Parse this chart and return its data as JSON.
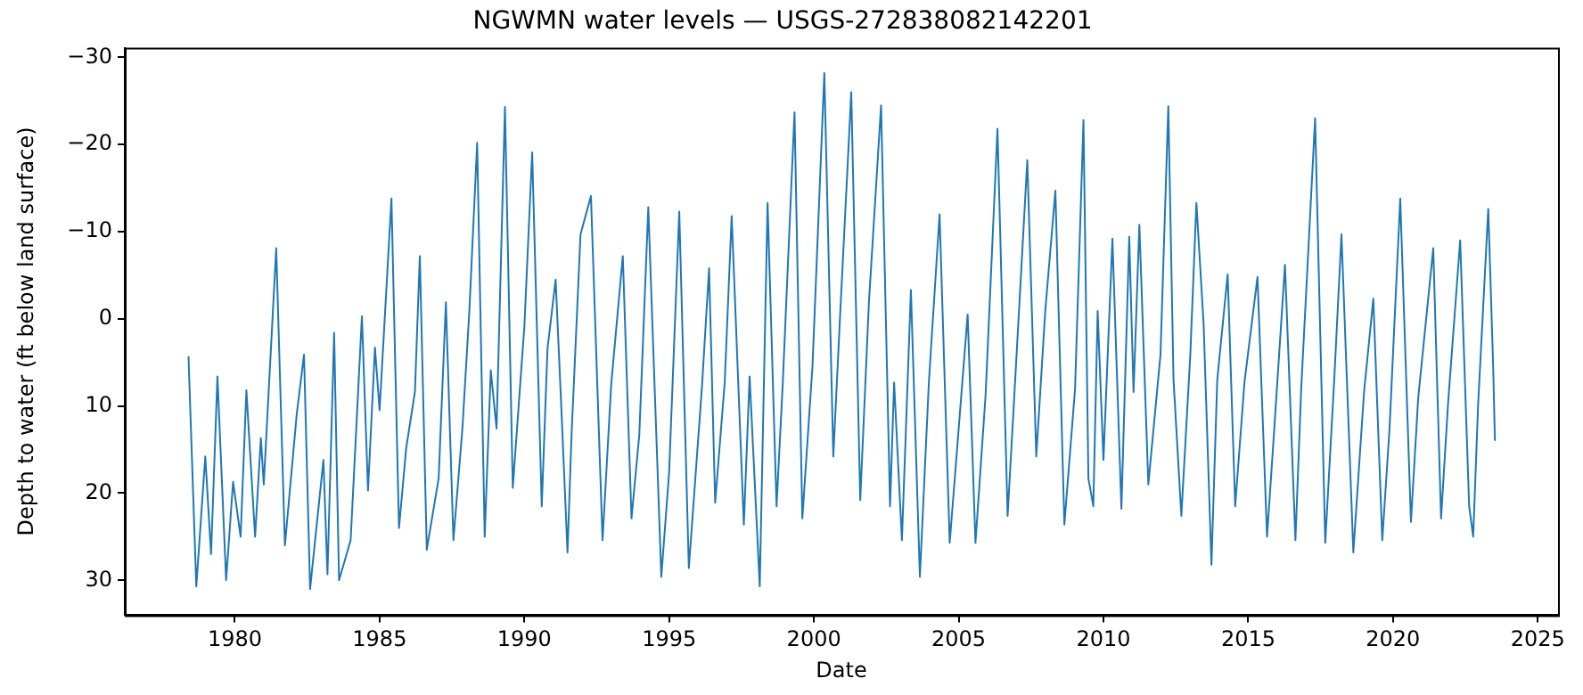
{
  "chart_data": {
    "type": "line",
    "title": "NGWMN water levels — USGS-272838082142201",
    "xlabel": "Date",
    "ylabel": "Depth to water (ft below land surface)",
    "x": [
      1978.4,
      1978.67,
      1978.98,
      1979.18,
      1979.4,
      1979.7,
      1979.94,
      1980.2,
      1980.4,
      1980.7,
      1980.9,
      1981.0,
      1981.43,
      1981.73,
      1982.14,
      1982.39,
      1982.6,
      1983.06,
      1983.2,
      1983.43,
      1983.6,
      1984.0,
      1984.39,
      1984.6,
      1984.84,
      1985.0,
      1985.41,
      1985.67,
      1985.92,
      1986.22,
      1986.39,
      1986.63,
      1987.04,
      1987.29,
      1987.55,
      1987.86,
      1988.1,
      1988.37,
      1988.63,
      1988.84,
      1989.04,
      1989.33,
      1989.6,
      1990.0,
      1990.27,
      1990.6,
      1990.8,
      1991.08,
      1991.29,
      1991.49,
      1991.63,
      1991.94,
      1992.3,
      1992.7,
      1993.0,
      1993.4,
      1993.7,
      1993.97,
      1994.28,
      1994.73,
      1995.0,
      1995.35,
      1995.68,
      1996.13,
      1996.38,
      1996.59,
      1996.92,
      1997.16,
      1997.58,
      1997.78,
      1998.13,
      1998.4,
      1998.71,
      1998.92,
      1999.33,
      1999.6,
      1999.95,
      2000.36,
      2000.67,
      2000.88,
      2001.29,
      2001.6,
      2001.9,
      2002.32,
      2002.63,
      2002.77,
      2003.04,
      2003.35,
      2003.66,
      2003.97,
      2004.34,
      2004.69,
      2005.31,
      2005.58,
      2005.93,
      2006.34,
      2006.69,
      2006.9,
      2007.37,
      2007.68,
      2007.99,
      2008.34,
      2008.65,
      2009.02,
      2009.31,
      2009.48,
      2009.65,
      2009.8,
      2010.0,
      2010.31,
      2010.62,
      2010.89,
      2011.04,
      2011.24,
      2011.55,
      2011.97,
      2012.24,
      2012.42,
      2012.69,
      2013.0,
      2013.21,
      2013.46,
      2013.73,
      2013.93,
      2014.29,
      2014.55,
      2014.87,
      2015.32,
      2015.65,
      2015.9,
      2016.27,
      2016.63,
      2016.83,
      2017.31,
      2017.66,
      2017.97,
      2018.22,
      2018.63,
      2019.0,
      2019.32,
      2019.63,
      2019.88,
      2020.25,
      2020.62,
      2020.87,
      2021.39,
      2021.66,
      2021.9,
      2022.32,
      2022.63,
      2022.77,
      2022.94,
      2023.29,
      2023.46,
      2023.52
    ],
    "series": [
      {
        "color": "#1f77b4",
        "values": [
          4.3,
          30.7,
          15.8,
          27,
          6.6,
          30,
          18.7,
          25,
          8.2,
          25,
          13.7,
          19,
          -8.1,
          26,
          10.9,
          4.1,
          31,
          16.2,
          29.3,
          1.6,
          30,
          25.4,
          -0.3,
          19.7,
          3.3,
          10.5,
          -13.8,
          24,
          14.8,
          8.4,
          -7.2,
          26.5,
          18.3,
          -1.9,
          25.4,
          12.6,
          -0.9,
          -20.2,
          25,
          5.9,
          12.6,
          -24.3,
          19.4,
          0.9,
          -19.1,
          21.5,
          3.4,
          -4.5,
          11.2,
          26.8,
          13.3,
          -9.7,
          -14.1,
          25.4,
          7.5,
          -7.2,
          22.9,
          13.3,
          -12.8,
          29.6,
          17.6,
          -12.3,
          28.6,
          8,
          -5.8,
          21.1,
          7.3,
          -11.8,
          23.6,
          6.6,
          30.7,
          -13.3,
          21.5,
          7.7,
          -23.7,
          22.9,
          5.5,
          -28.2,
          15.8,
          1.3,
          -26,
          20.8,
          -1.9,
          -24.5,
          21.5,
          7.3,
          25.4,
          -3.3,
          29.6,
          7.3,
          -12,
          25.7,
          -0.5,
          25.7,
          8.7,
          -21.8,
          22.6,
          10.1,
          -18.2,
          15.8,
          -0.9,
          -14.7,
          23.6,
          8,
          -22.8,
          18.3,
          21.5,
          -0.9,
          16.2,
          -9.2,
          21.8,
          -9.4,
          8.4,
          -10.8,
          19,
          4.1,
          -24.4,
          7,
          22.6,
          4.1,
          -13.3,
          0.6,
          28.2,
          7,
          -5.1,
          21.5,
          7.3,
          -4.8,
          25,
          12.6,
          -6.2,
          25.4,
          8,
          -23,
          25.7,
          7,
          -9.7,
          26.8,
          8.4,
          -2.3,
          25.4,
          12.6,
          -13.8,
          23.3,
          9.1,
          -8.1,
          22.9,
          9.8,
          -9,
          21.5,
          25,
          9.8,
          -12.6,
          5.5,
          14
        ]
      }
    ],
    "xlim": [
      1976.2,
      2025.7
    ],
    "xticks": [
      1980,
      1985,
      1990,
      1995,
      2000,
      2005,
      2010,
      2015,
      2020,
      2025
    ],
    "ylim": [
      34,
      -31.1
    ],
    "yticks": [
      {
        "value": -30,
        "label": "−30"
      },
      {
        "value": -20,
        "label": "−20"
      },
      {
        "value": -10,
        "label": "−10"
      },
      0,
      10,
      20,
      30
    ],
    "grid": false,
    "legend": false,
    "marker": "none",
    "line_style": "solid"
  }
}
